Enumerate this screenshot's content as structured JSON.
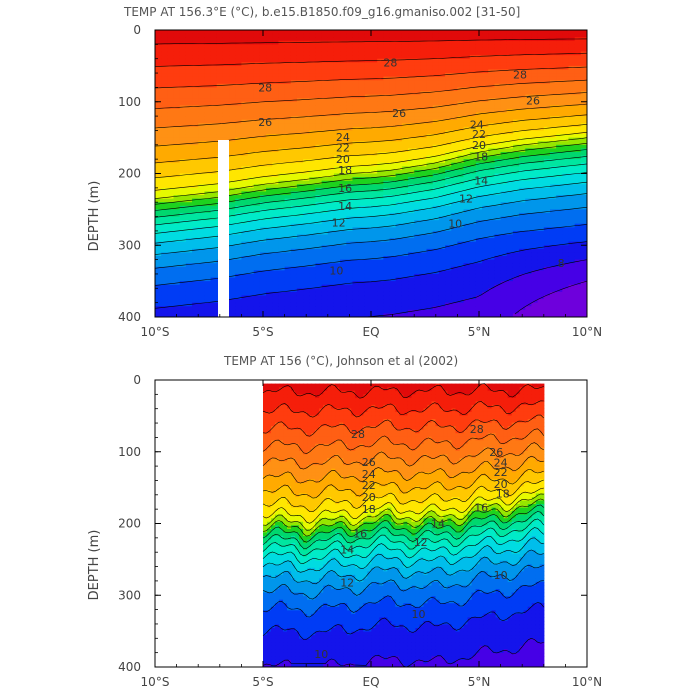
{
  "chart_data": [
    {
      "type": "heatmap",
      "title": "TEMP AT 156.3°E (°C), b.e15.B1850.f09_g16.gmaniso.002 [31-50]",
      "ylabel": "DEPTH (m)",
      "xlim": [
        -10,
        10
      ],
      "ylim": [
        400,
        0
      ],
      "xticks": [
        -10,
        -5,
        0,
        5,
        10
      ],
      "xtick_labels": [
        "10°S",
        "5°S",
        "EQ",
        "5°N",
        "10°N"
      ],
      "yticks": [
        0,
        100,
        200,
        300,
        400
      ],
      "ytick_labels": [
        "0",
        "100",
        "200",
        "300",
        "400"
      ],
      "contour_interval": 1,
      "data_extent_x": [
        -10,
        10
      ],
      "data_extent_depth": [
        0,
        400
      ],
      "thermocline": {
        "lat": [
          -10,
          -7,
          -5,
          -3,
          -1,
          0,
          1,
          3,
          5,
          7,
          10
        ],
        "depth_of_20C": [
          235,
          225,
          215,
          208,
          200,
          198,
          195,
          185,
          170,
          160,
          150
        ]
      },
      "contour_labels": [
        {
          "value": "28",
          "lat": -4.9,
          "depth": 80
        },
        {
          "value": "28",
          "lat": 0.9,
          "depth": 45
        },
        {
          "value": "28",
          "lat": 6.9,
          "depth": 62
        },
        {
          "value": "26",
          "lat": -4.9,
          "depth": 128
        },
        {
          "value": "26",
          "lat": 1.3,
          "depth": 116
        },
        {
          "value": "26",
          "lat": 7.5,
          "depth": 98
        },
        {
          "value": "24",
          "lat": -1.3,
          "depth": 149
        },
        {
          "value": "24",
          "lat": 4.9,
          "depth": 132
        },
        {
          "value": "22",
          "lat": -1.3,
          "depth": 164
        },
        {
          "value": "22",
          "lat": 5.0,
          "depth": 145
        },
        {
          "value": "20",
          "lat": -1.3,
          "depth": 180
        },
        {
          "value": "20",
          "lat": 5.0,
          "depth": 160
        },
        {
          "value": "18",
          "lat": -1.2,
          "depth": 195
        },
        {
          "value": "18",
          "lat": 5.1,
          "depth": 176
        },
        {
          "value": "16",
          "lat": -1.2,
          "depth": 220
        },
        {
          "value": "14",
          "lat": -1.2,
          "depth": 245
        },
        {
          "value": "14",
          "lat": 5.1,
          "depth": 210
        },
        {
          "value": "12",
          "lat": -1.5,
          "depth": 268
        },
        {
          "value": "12",
          "lat": 4.4,
          "depth": 235
        },
        {
          "value": "10",
          "lat": -1.6,
          "depth": 335
        },
        {
          "value": "10",
          "lat": 3.9,
          "depth": 270
        },
        {
          "value": "8",
          "lat": 8.8,
          "depth": 325
        }
      ]
    },
    {
      "type": "heatmap",
      "title": "TEMP AT 156 (°C), Johnson et al (2002)",
      "ylabel": "DEPTH (m)",
      "xlim": [
        -10,
        10
      ],
      "ylim": [
        400,
        0
      ],
      "xticks": [
        -10,
        -5,
        0,
        5,
        10
      ],
      "xtick_labels": [
        "10°S",
        "5°S",
        "EQ",
        "5°N",
        "10°N"
      ],
      "yticks": [
        0,
        100,
        200,
        300,
        400
      ],
      "ytick_labels": [
        "0",
        "100",
        "200",
        "300",
        "400"
      ],
      "contour_interval": 1,
      "data_extent_x": [
        -5,
        8
      ],
      "data_extent_depth": [
        5,
        400
      ],
      "thermocline": {
        "lat": [
          -5,
          -3,
          -1,
          0,
          1,
          3,
          5,
          7,
          8
        ],
        "depth_of_20C": [
          195,
          200,
          195,
          190,
          188,
          192,
          180,
          170,
          165
        ]
      },
      "contour_labels": [
        {
          "value": "28",
          "lat": -0.6,
          "depth": 75
        },
        {
          "value": "28",
          "lat": 4.9,
          "depth": 68
        },
        {
          "value": "26",
          "lat": -0.1,
          "depth": 114
        },
        {
          "value": "26",
          "lat": 5.8,
          "depth": 100
        },
        {
          "value": "24",
          "lat": -0.1,
          "depth": 131
        },
        {
          "value": "24",
          "lat": 6.0,
          "depth": 115
        },
        {
          "value": "22",
          "lat": -0.1,
          "depth": 146
        },
        {
          "value": "22",
          "lat": 6.0,
          "depth": 128
        },
        {
          "value": "20",
          "lat": -0.1,
          "depth": 163
        },
        {
          "value": "20",
          "lat": 6.0,
          "depth": 145
        },
        {
          "value": "18",
          "lat": -0.1,
          "depth": 180
        },
        {
          "value": "18",
          "lat": 6.1,
          "depth": 158
        },
        {
          "value": "16",
          "lat": -0.5,
          "depth": 214
        },
        {
          "value": "16",
          "lat": 5.1,
          "depth": 178
        },
        {
          "value": "14",
          "lat": -1.1,
          "depth": 236
        },
        {
          "value": "14",
          "lat": 3.1,
          "depth": 200
        },
        {
          "value": "12",
          "lat": 2.3,
          "depth": 226
        },
        {
          "value": "12",
          "lat": -1.1,
          "depth": 282
        },
        {
          "value": "10",
          "lat": 6.0,
          "depth": 272
        },
        {
          "value": "10",
          "lat": 2.2,
          "depth": 326
        },
        {
          "value": "10",
          "lat": -2.3,
          "depth": 382
        }
      ]
    }
  ]
}
